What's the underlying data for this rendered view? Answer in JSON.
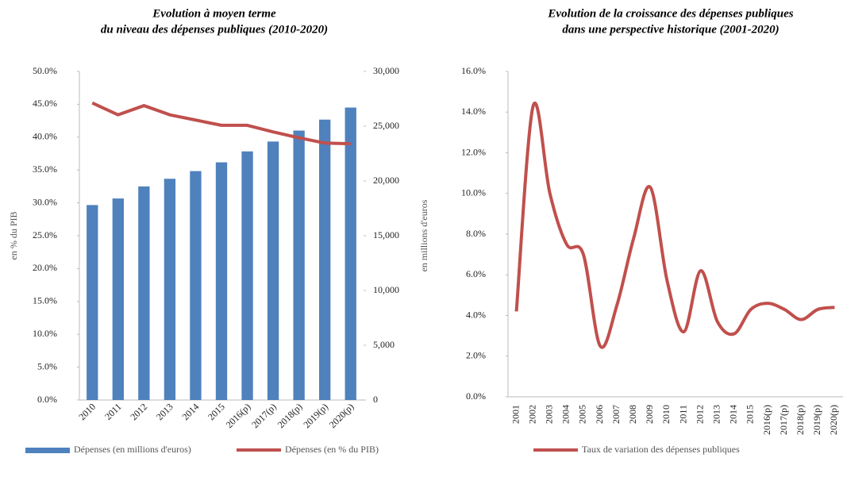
{
  "chart_data": [
    {
      "type": "bar-line",
      "title": [
        "Evolution à moyen terme",
        "du niveau des dépenses publiques (2010-2020)"
      ],
      "ylabel": "en %  du PIB",
      "y2label": "en millions d'euros",
      "categories": [
        "2010",
        "2011",
        "2012",
        "2013",
        "2014",
        "2015",
        "2016(p)",
        "2017(p)",
        "2018(p)",
        "2019(p)",
        "2020(p)"
      ],
      "series": [
        {
          "name": "Dépenses (en millions d'euros)",
          "type": "bar",
          "axis": "y2",
          "color": "#4f81bd",
          "values": [
            17800,
            18400,
            19500,
            20200,
            20900,
            21700,
            22700,
            23600,
            24600,
            25600,
            26700
          ]
        },
        {
          "name": "Dépenses (en % du PIB)",
          "type": "line",
          "axis": "y",
          "color": "#c0504d",
          "values": [
            45.2,
            43.4,
            44.8,
            43.4,
            42.6,
            41.8,
            41.8,
            40.8,
            39.9,
            39.1,
            39.0
          ]
        }
      ],
      "ylim": [
        0,
        50
      ],
      "yticks": [
        {
          "value": 0,
          "label": "0.0%"
        },
        {
          "value": 5,
          "label": "5.0%"
        },
        {
          "value": 10,
          "label": "10.0%"
        },
        {
          "value": 15,
          "label": "15.0%"
        },
        {
          "value": 20,
          "label": "20.0%"
        },
        {
          "value": 25,
          "label": "25.0%"
        },
        {
          "value": 30,
          "label": "30.0%"
        },
        {
          "value": 35,
          "label": "35.0%"
        },
        {
          "value": 40,
          "label": "40.0%"
        },
        {
          "value": 45,
          "label": "45.0%"
        },
        {
          "value": 50,
          "label": "50.0%"
        }
      ],
      "y2lim": [
        0,
        30000
      ],
      "y2ticks": [
        0,
        {
          "value": 5000,
          "label": "5,000"
        },
        {
          "value": 10000,
          "label": "10,000"
        },
        {
          "value": 15000,
          "label": "15,000"
        },
        {
          "value": 20000,
          "label": "20,000"
        },
        {
          "value": 25000,
          "label": "25,000"
        },
        {
          "value": 30000,
          "label": "30,000"
        }
      ],
      "legend": "bottom"
    },
    {
      "type": "line",
      "title": [
        "Evolution de la croissance des dépenses publiques",
        "dans une perspective historique (2001-2020)"
      ],
      "categories": [
        "2001",
        "2002",
        "2003",
        "2004",
        "2005",
        "2006",
        "2007",
        "2008",
        "2009",
        "2010",
        "2011",
        "2012",
        "2013",
        "2014",
        "2015",
        "2016(p)",
        "2017(p)",
        "2018(p)",
        "2019(p)",
        "2020(p)"
      ],
      "series": [
        {
          "name": "Taux de variation des dépenses publiques",
          "type": "line",
          "axis": "y",
          "color": "#c0504d",
          "values": [
            4.2,
            14.3,
            10.0,
            7.5,
            7.0,
            2.5,
            4.5,
            7.8,
            10.3,
            5.7,
            3.2,
            6.2,
            3.7,
            3.1,
            4.3,
            4.6,
            4.3,
            3.8,
            4.3,
            4.4
          ]
        }
      ],
      "smooth": true,
      "ylim": [
        0,
        16
      ],
      "yticks": [
        {
          "value": 0,
          "label": "0.0%"
        },
        {
          "value": 2,
          "label": "2.0%"
        },
        {
          "value": 4,
          "label": "4.0%"
        },
        {
          "value": 6,
          "label": "6.0%"
        },
        {
          "value": 8,
          "label": "8.0%"
        },
        {
          "value": 10,
          "label": "10.0%"
        },
        {
          "value": 12,
          "label": "12.0%"
        },
        {
          "value": 14,
          "label": "14.0%"
        },
        {
          "value": 16,
          "label": "16.0%"
        }
      ],
      "legend": "bottom"
    }
  ]
}
